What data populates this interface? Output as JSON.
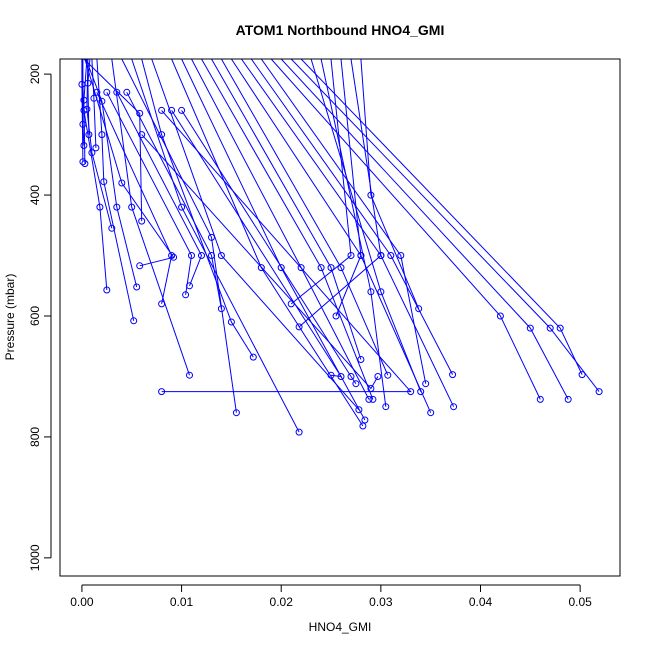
{
  "chart_data": {
    "type": "line",
    "title": "ATOM1 Northbound HNO4_GMI",
    "xlabel": "HNO4_GMI",
    "ylabel": "Pressure (mbar)",
    "xlim": [
      -0.0022,
      0.054
    ],
    "ylim": [
      1030,
      175
    ],
    "y_reversed": true,
    "x_ticks": [
      "0.00",
      "0.01",
      "0.02",
      "0.03",
      "0.04",
      "0.05"
    ],
    "y_ticks": [
      "200",
      "400",
      "600",
      "800",
      "1000"
    ],
    "x_tick_values": [
      0,
      0.01,
      0.02,
      0.03,
      0.04,
      0.05
    ],
    "y_tick_values": [
      200,
      400,
      600,
      800,
      1000
    ],
    "series_color": "#0000ff",
    "marker": "open-circle",
    "series": [
      {
        "x": [
          0.0002,
          0.0058,
          0.006
        ],
        "y": [
          175,
          265,
          443
        ]
      },
      {
        "x": [
          0.0003,
          0.004,
          0.0092,
          0.0058
        ],
        "y": [
          175,
          380,
          503,
          517
        ]
      },
      {
        "x": [
          0.0004,
          0.002,
          0.0035,
          0.0055
        ],
        "y": [
          175,
          245,
          420,
          552
        ]
      },
      {
        "x": [
          0.0,
          0.0002,
          0.0018,
          0.0025
        ],
        "y": [
          175,
          260,
          420,
          557
        ]
      },
      {
        "x": [
          0.0006,
          0.0005,
          0.001,
          0.003
        ],
        "y": [
          175,
          258,
          330,
          455
        ]
      },
      {
        "x": [
          0.0001,
          0.0001,
          0.0002
        ],
        "y": [
          175,
          283,
          318
        ]
      },
      {
        "x": [
          0.0,
          0.0,
          0.0001
        ],
        "y": [
          175,
          217,
          345
        ]
      },
      {
        "x": [
          0.0005,
          0.0002,
          0.0003
        ],
        "y": [
          175,
          243,
          348
        ]
      },
      {
        "x": [
          0.0008,
          0.0006,
          0.0007
        ],
        "y": [
          175,
          215,
          300
        ]
      },
      {
        "x": [
          0.0015,
          0.002,
          0.0022,
          0.0052
        ],
        "y": [
          175,
          300,
          378,
          608
        ]
      },
      {
        "x": [
          0.001,
          0.0012,
          0.0014
        ],
        "y": [
          175,
          240,
          322
        ]
      },
      {
        "x": [
          0.003,
          0.005,
          0.0108
        ],
        "y": [
          175,
          420,
          698
        ]
      },
      {
        "x": [
          0.004,
          0.013,
          0.0155
        ],
        "y": [
          175,
          470,
          760
        ]
      },
      {
        "x": [
          0.005,
          0.01,
          0.0218
        ],
        "y": [
          175,
          420,
          792
        ]
      },
      {
        "x": [
          0.006,
          0.008,
          0.015,
          0.0172
        ],
        "y": [
          175,
          300,
          610,
          668
        ]
      },
      {
        "x": [
          0.007,
          0.014,
          0.0278
        ],
        "y": [
          175,
          500,
          755
        ]
      },
      {
        "x": [
          0.009,
          0.018,
          0.0282
        ],
        "y": [
          175,
          520,
          782
        ]
      },
      {
        "x": [
          0.01,
          0.02,
          0.0284
        ],
        "y": [
          175,
          520,
          772
        ]
      },
      {
        "x": [
          0.011,
          0.022,
          0.0288
        ],
        "y": [
          175,
          520,
          738
        ]
      },
      {
        "x": [
          0.012,
          0.024,
          0.0292
        ],
        "y": [
          175,
          520,
          738
        ]
      },
      {
        "x": [
          0.013,
          0.025,
          0.028
        ],
        "y": [
          175,
          520,
          672
        ]
      },
      {
        "x": [
          0.014,
          0.026,
          0.0307
        ],
        "y": [
          175,
          520,
          698
        ]
      },
      {
        "x": [
          0.015,
          0.028,
          0.035
        ],
        "y": [
          175,
          500,
          760
        ]
      },
      {
        "x": [
          0.016,
          0.03,
          0.0373
        ],
        "y": [
          175,
          500,
          750
        ]
      },
      {
        "x": [
          0.017,
          0.031,
          0.0372
        ],
        "y": [
          175,
          500,
          697
        ]
      },
      {
        "x": [
          0.018,
          0.032,
          0.0345
        ],
        "y": [
          175,
          500,
          712
        ]
      },
      {
        "x": [
          0.019,
          0.042,
          0.046
        ],
        "y": [
          175,
          600,
          738
        ]
      },
      {
        "x": [
          0.02,
          0.045,
          0.0488
        ],
        "y": [
          175,
          620,
          738
        ]
      },
      {
        "x": [
          0.021,
          0.047,
          0.0519
        ],
        "y": [
          175,
          620,
          725
        ]
      },
      {
        "x": [
          0.022,
          0.048,
          0.0502
        ],
        "y": [
          175,
          620,
          697
        ]
      },
      {
        "x": [
          0.023,
          0.03,
          0.034
        ],
        "y": [
          175,
          560,
          725
        ]
      },
      {
        "x": [
          0.024,
          0.029,
          0.0305
        ],
        "y": [
          175,
          560,
          750
        ]
      },
      {
        "x": [
          0.025,
          0.027,
          0.021
        ],
        "y": [
          175,
          500,
          580
        ]
      },
      {
        "x": [
          0.026,
          0.028,
          0.0255
        ],
        "y": [
          175,
          500,
          600
        ]
      },
      {
        "x": [
          0.027,
          0.03,
          0.0218
        ],
        "y": [
          175,
          500,
          618
        ]
      },
      {
        "x": [
          0.028,
          0.029,
          0.0338
        ],
        "y": [
          175,
          400,
          588
        ]
      },
      {
        "x": [
          0.0015,
          0.009,
          0.008
        ],
        "y": [
          230,
          500,
          580
        ]
      },
      {
        "x": [
          0.0025,
          0.011,
          0.0104
        ],
        "y": [
          230,
          500,
          565
        ]
      },
      {
        "x": [
          0.0035,
          0.012,
          0.0108
        ],
        "y": [
          230,
          500,
          550
        ]
      },
      {
        "x": [
          0.0045,
          0.013,
          0.014
        ],
        "y": [
          230,
          500,
          588
        ]
      },
      {
        "x": [
          0.006,
          0.029,
          0.0297
        ],
        "y": [
          300,
          720,
          700
        ]
      },
      {
        "x": [
          0.008,
          0.033,
          0.008
        ],
        "y": [
          260,
          725,
          725
        ]
      },
      {
        "x": [
          0.009,
          0.026,
          0.025
        ],
        "y": [
          260,
          700,
          698
        ]
      },
      {
        "x": [
          0.01,
          0.027,
          0.0275
        ],
        "y": [
          260,
          700,
          712
        ]
      }
    ]
  }
}
